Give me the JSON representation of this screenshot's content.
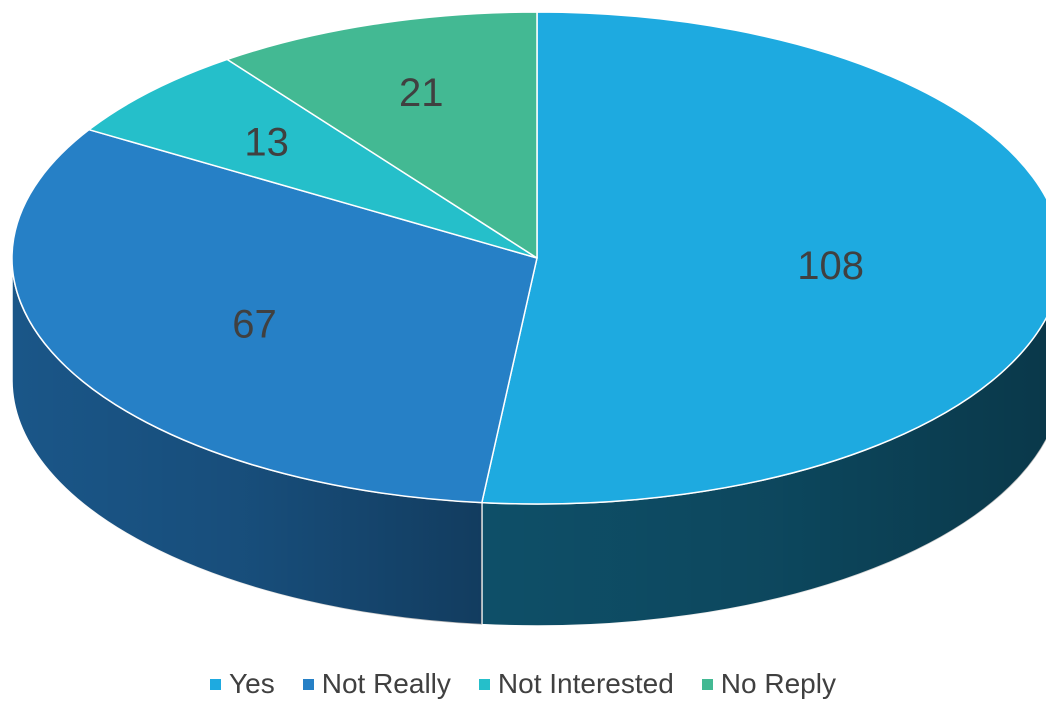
{
  "chart_data": {
    "type": "pie",
    "style": "3d",
    "title": "",
    "categories": [
      "Yes",
      "Not Really",
      "Not Interested",
      "No Reply"
    ],
    "values": [
      108,
      67,
      13,
      21
    ],
    "colors": [
      "#1eaae0",
      "#2680c6",
      "#25bfca",
      "#43b993"
    ],
    "side_colors": [
      "#0e4f68",
      "#1a5688",
      "#157c85",
      "#2a7a60"
    ],
    "data_labels": [
      "108",
      "67",
      "13",
      "21"
    ],
    "legend_position": "bottom"
  }
}
